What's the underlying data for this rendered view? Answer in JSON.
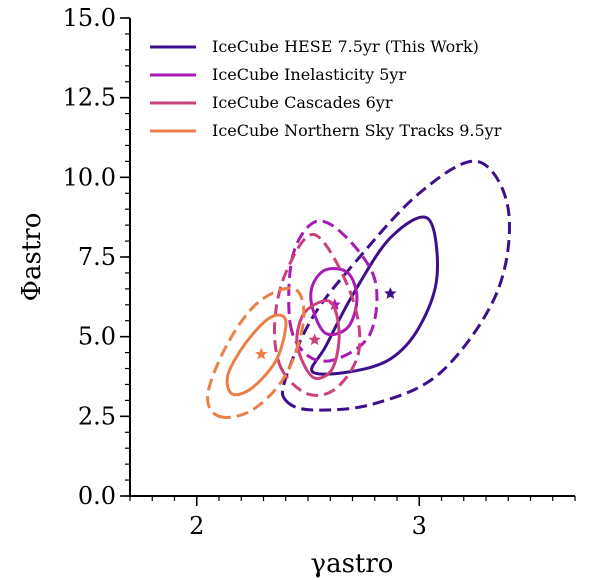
{
  "chart_data": {
    "type": "contour",
    "xlabel": "γastro",
    "ylabel": "Φastro",
    "xlim": [
      1.7,
      3.7
    ],
    "ylim": [
      0.0,
      15.0
    ],
    "x_ticks": [
      "2",
      "3"
    ],
    "y_ticks": [
      "0.0",
      "2.5",
      "5.0",
      "7.5",
      "10.0",
      "12.5",
      "15.0"
    ],
    "x_tick_values": [
      2,
      3
    ],
    "y_tick_values": [
      0.0,
      2.5,
      5.0,
      7.5,
      10.0,
      12.5,
      15.0
    ],
    "legend_position": "upper-left",
    "series": [
      {
        "name": "IceCube HESE 7.5yr (This Work)",
        "color": "#3d0f8c",
        "best_fit": [
          2.87,
          6.35
        ],
        "contour_68": [
          [
            2.52,
            3.9
          ],
          [
            2.69,
            3.9
          ],
          [
            2.87,
            4.3
          ],
          [
            3.0,
            5.3
          ],
          [
            3.08,
            6.9
          ],
          [
            3.04,
            8.7
          ],
          [
            2.87,
            8.1
          ],
          [
            2.7,
            6.3
          ],
          [
            2.58,
            4.7
          ],
          [
            2.52,
            3.9
          ]
        ],
        "contour_95": [
          [
            2.4,
            3.0
          ],
          [
            2.52,
            2.7
          ],
          [
            2.8,
            2.9
          ],
          [
            3.1,
            3.9
          ],
          [
            3.35,
            6.4
          ],
          [
            3.4,
            9.0
          ],
          [
            3.26,
            10.5
          ],
          [
            3.0,
            9.5
          ],
          [
            2.72,
            7.4
          ],
          [
            2.52,
            5.6
          ],
          [
            2.4,
            3.7
          ],
          [
            2.4,
            3.0
          ]
        ]
      },
      {
        "name": "IceCube Inelasticity 5yr",
        "color": "#a81bb4",
        "best_fit": [
          2.62,
          6.0
        ],
        "contour_68": [
          [
            2.52,
            5.9
          ],
          [
            2.58,
            5.1
          ],
          [
            2.68,
            5.3
          ],
          [
            2.72,
            6.2
          ],
          [
            2.68,
            7.0
          ],
          [
            2.58,
            7.1
          ],
          [
            2.52,
            6.6
          ],
          [
            2.52,
            5.9
          ]
        ],
        "contour_95": [
          [
            2.42,
            5.4
          ],
          [
            2.5,
            4.4
          ],
          [
            2.63,
            4.3
          ],
          [
            2.78,
            5.1
          ],
          [
            2.8,
            6.8
          ],
          [
            2.66,
            8.2
          ],
          [
            2.53,
            8.6
          ],
          [
            2.43,
            7.5
          ],
          [
            2.42,
            5.4
          ]
        ]
      },
      {
        "name": "IceCube Cascades 6yr",
        "color": "#cb3f7c",
        "best_fit": [
          2.53,
          4.9
        ],
        "contour_68": [
          [
            2.47,
            4.3
          ],
          [
            2.53,
            3.7
          ],
          [
            2.61,
            4.0
          ],
          [
            2.64,
            5.1
          ],
          [
            2.6,
            6.1
          ],
          [
            2.49,
            5.8
          ],
          [
            2.45,
            5.0
          ],
          [
            2.47,
            4.3
          ]
        ],
        "contour_95": [
          [
            2.38,
            4.0
          ],
          [
            2.5,
            3.2
          ],
          [
            2.63,
            3.4
          ],
          [
            2.73,
            4.6
          ],
          [
            2.69,
            6.4
          ],
          [
            2.53,
            8.2
          ],
          [
            2.4,
            7.0
          ],
          [
            2.35,
            5.4
          ],
          [
            2.38,
            4.0
          ]
        ]
      },
      {
        "name": "IceCube Northern Sky Tracks 9.5yr",
        "color": "#ea8048",
        "best_fit": [
          2.29,
          4.45
        ],
        "contour_68": [
          [
            2.16,
            3.2
          ],
          [
            2.25,
            3.4
          ],
          [
            2.36,
            4.3
          ],
          [
            2.4,
            5.5
          ],
          [
            2.33,
            5.6
          ],
          [
            2.22,
            4.8
          ],
          [
            2.14,
            3.8
          ],
          [
            2.16,
            3.2
          ]
        ],
        "contour_95": [
          [
            2.1,
            2.5
          ],
          [
            2.25,
            2.7
          ],
          [
            2.4,
            3.8
          ],
          [
            2.48,
            5.5
          ],
          [
            2.44,
            6.5
          ],
          [
            2.28,
            6.1
          ],
          [
            2.14,
            4.8
          ],
          [
            2.05,
            3.2
          ],
          [
            2.1,
            2.5
          ]
        ]
      }
    ]
  }
}
